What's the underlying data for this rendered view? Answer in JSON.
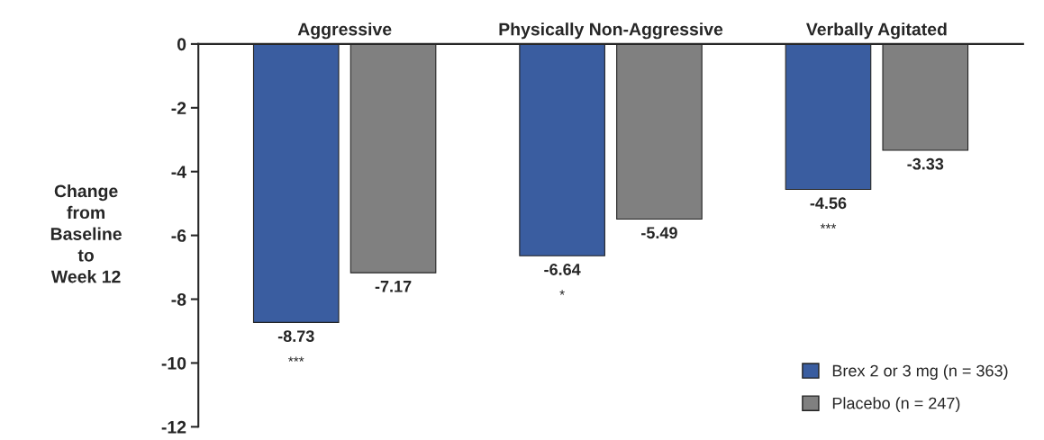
{
  "chart_data": {
    "type": "bar",
    "categories": [
      "Aggressive",
      "Physically Non-Aggressive",
      "Verbally Agitated"
    ],
    "series": [
      {
        "name": "Brex 2 or 3 mg (n = 363)",
        "color": "#3a5da0",
        "values": [
          -8.73,
          -6.64,
          -4.56
        ]
      },
      {
        "name": "Placebo (n = 247)",
        "color": "#808080",
        "values": [
          -7.17,
          -5.49,
          -3.33
        ]
      }
    ],
    "ylabel": "Change\nfrom\nBaseline\nto\nWeek 12",
    "ylim": [
      -12,
      0
    ],
    "yticks": [
      0,
      -2,
      -4,
      -6,
      -8,
      -10,
      -12
    ],
    "data_labels": true,
    "legend": "bottom right",
    "grid": false,
    "annotations": [
      "***",
      "*",
      "***"
    ]
  }
}
